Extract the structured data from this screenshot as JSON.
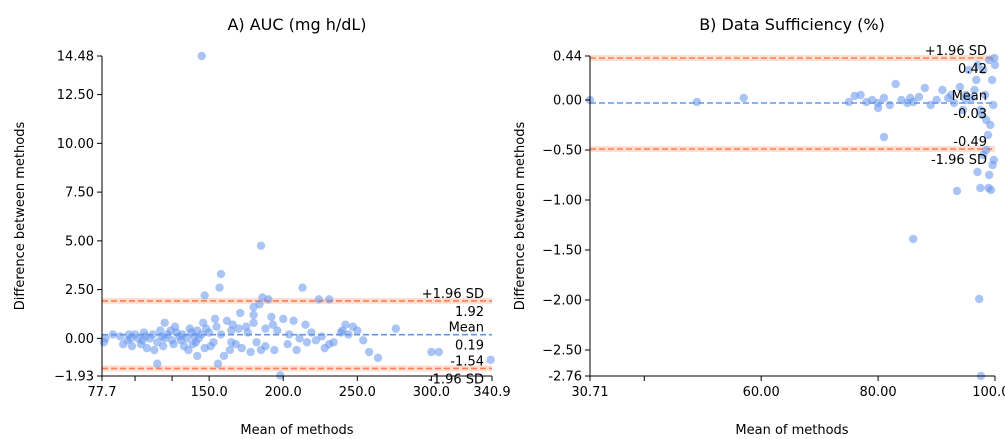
{
  "chart_data": [
    {
      "type": "scatter",
      "title": "A) AUC (mg h/dL)",
      "xlabel": "Mean of methods",
      "ylabel": "Difference between methods",
      "xlim": [
        77.7,
        340.9
      ],
      "ylim": [
        -1.93,
        14.48
      ],
      "xticks": [
        {
          "value": 77.7,
          "label": "77.7"
        },
        {
          "value": 150.0,
          "label": "150.0"
        },
        {
          "value": 200.0,
          "label": "200.0"
        },
        {
          "value": 250.0,
          "label": "250.0"
        },
        {
          "value": 300.0,
          "label": "300.0"
        },
        {
          "value": 340.9,
          "label": "340.9"
        }
      ],
      "xminor": [
        100,
        125
      ],
      "yticks": [
        {
          "value": 14.48,
          "label": "14.48"
        },
        {
          "value": 12.5,
          "label": "12.50"
        },
        {
          "value": 10.0,
          "label": "10.00"
        },
        {
          "value": 7.5,
          "label": "7.50"
        },
        {
          "value": 5.0,
          "label": "5.00"
        },
        {
          "value": 2.5,
          "label": "2.50"
        },
        {
          "value": 0.0,
          "label": "0.00"
        },
        {
          "value": -1.93,
          "label": "−1.93"
        }
      ],
      "lines": [
        {
          "name": "upper",
          "value": 1.92,
          "color": "#ff7f50",
          "value_label": "1.92",
          "tag": "+1.96 SD",
          "tag_pos": "above",
          "value_pos": "below"
        },
        {
          "name": "mean",
          "value": 0.19,
          "color": "#6495ed",
          "value_label": "0.19",
          "tag": "Mean",
          "tag_pos": "above",
          "value_pos": "below"
        },
        {
          "name": "lower",
          "value": -1.54,
          "color": "#ff7f50",
          "value_label": "-1.54",
          "tag": "-1.96 SD",
          "tag_pos": "below",
          "value_pos": "above"
        }
      ],
      "point_color": "#6495ed",
      "points": [
        [
          145,
          14.48
        ],
        [
          185,
          4.75
        ],
        [
          158,
          3.3
        ],
        [
          157,
          2.6
        ],
        [
          147,
          2.2
        ],
        [
          213,
          2.6
        ],
        [
          224,
          2.0
        ],
        [
          231,
          2.0
        ],
        [
          186,
          2.1
        ],
        [
          190,
          2.0
        ],
        [
          184,
          1.75
        ],
        [
          180,
          1.6
        ],
        [
          200,
          1.0
        ],
        [
          180,
          1.2
        ],
        [
          192,
          1.1
        ],
        [
          207,
          0.9
        ],
        [
          215,
          0.7
        ],
        [
          242,
          0.7
        ],
        [
          180,
          0.8
        ],
        [
          175,
          0.6
        ],
        [
          170,
          0.5
        ],
        [
          165,
          0.4
        ],
        [
          162,
          0.9
        ],
        [
          155,
          0.6
        ],
        [
          150,
          0.3
        ],
        [
          148,
          0.5
        ],
        [
          145,
          0.2
        ],
        [
          142,
          0.4
        ],
        [
          140,
          0.1
        ],
        [
          138,
          0.3
        ],
        [
          135,
          0.0
        ],
        [
          132,
          0.2
        ],
        [
          130,
          0.1
        ],
        [
          128,
          0.3
        ],
        [
          125,
          -0.1
        ],
        [
          122,
          0.2
        ],
        [
          120,
          0.0
        ],
        [
          118,
          0.1
        ],
        [
          115,
          -0.2
        ],
        [
          112,
          0.2
        ],
        [
          110,
          0.0
        ],
        [
          107,
          0.1
        ],
        [
          105,
          -0.1
        ],
        [
          102,
          0.0
        ],
        [
          100,
          0.2
        ],
        [
          97,
          0.0
        ],
        [
          95,
          -0.1
        ],
        [
          90,
          0.1
        ],
        [
          85,
          0.2
        ],
        [
          80,
          0.0
        ],
        [
          79,
          -0.2
        ],
        [
          92,
          -0.3
        ],
        [
          98,
          -0.4
        ],
        [
          108,
          -0.5
        ],
        [
          115,
          -1.3
        ],
        [
          120,
          0.8
        ],
        [
          136,
          -0.6
        ],
        [
          142,
          -0.9
        ],
        [
          151,
          -0.4
        ],
        [
          156,
          -1.3
        ],
        [
          160,
          -0.9
        ],
        [
          164,
          -0.6
        ],
        [
          168,
          -0.3
        ],
        [
          172,
          -0.5
        ],
        [
          178,
          -0.7
        ],
        [
          182,
          -0.2
        ],
        [
          188,
          -0.4
        ],
        [
          194,
          -0.6
        ],
        [
          198,
          -1.9
        ],
        [
          203,
          -0.3
        ],
        [
          209,
          -0.6
        ],
        [
          216,
          -0.2
        ],
        [
          222,
          -0.1
        ],
        [
          228,
          -0.5
        ],
        [
          234,
          -0.2
        ],
        [
          239,
          0.3
        ],
        [
          244,
          0.2
        ],
        [
          250,
          0.4
        ],
        [
          254,
          -0.1
        ],
        [
          258,
          -0.7
        ],
        [
          264,
          -1.0
        ],
        [
          276,
          0.5
        ],
        [
          305,
          -0.7
        ],
        [
          340,
          -1.1
        ],
        [
          300,
          -0.7
        ],
        [
          196,
          0.4
        ],
        [
          204,
          0.2
        ],
        [
          211,
          0.0
        ],
        [
          219,
          0.3
        ],
        [
          226,
          0.1
        ],
        [
          188,
          0.5
        ],
        [
          176,
          0.3
        ],
        [
          166,
          0.7
        ],
        [
          154,
          1.0
        ],
        [
          146,
          0.8
        ],
        [
          137,
          0.5
        ],
        [
          127,
          0.6
        ],
        [
          117,
          0.4
        ],
        [
          106,
          0.3
        ],
        [
          96,
          0.2
        ],
        [
          153,
          -0.2
        ],
        [
          147,
          -0.5
        ],
        [
          141,
          -0.2
        ],
        [
          133,
          -0.4
        ],
        [
          126,
          -0.3
        ],
        [
          119,
          -0.4
        ],
        [
          113,
          -0.6
        ],
        [
          104,
          -0.3
        ],
        [
          171,
          1.3
        ],
        [
          193,
          0.7
        ],
        [
          240,
          0.4
        ],
        [
          247,
          0.6
        ],
        [
          231,
          -0.3
        ],
        [
          185,
          -0.6
        ],
        [
          165,
          -0.2
        ],
        [
          158,
          0.2
        ],
        [
          143,
          0.0
        ],
        [
          139,
          -0.3
        ],
        [
          131,
          -0.1
        ],
        [
          124,
          0.4
        ]
      ]
    },
    {
      "type": "scatter",
      "title": "B) Data Sufficiency (%)",
      "xlabel": "Mean of methods",
      "ylabel": "Difference between methods",
      "xlim": [
        30.71,
        100.0
      ],
      "ylim": [
        -2.76,
        0.44
      ],
      "xticks": [
        {
          "value": 30.71,
          "label": "30.71"
        },
        {
          "value": 60.0,
          "label": "60.00"
        },
        {
          "value": 80.0,
          "label": "80.00"
        },
        {
          "value": 100.0,
          "label": "100.00"
        }
      ],
      "xminor": [
        40
      ],
      "yticks": [
        {
          "value": 0.44,
          "label": "0.44"
        },
        {
          "value": 0.0,
          "label": "0.00"
        },
        {
          "value": -0.5,
          "label": "−0.50"
        },
        {
          "value": -1.0,
          "label": "−1.00"
        },
        {
          "value": -1.5,
          "label": "−1.50"
        },
        {
          "value": -2.0,
          "label": "−2.00"
        },
        {
          "value": -2.5,
          "label": "−2.50"
        },
        {
          "value": -2.76,
          "label": "-2.76"
        }
      ],
      "lines": [
        {
          "name": "upper",
          "value": 0.42,
          "color": "#ff7f50",
          "value_label": "0.42",
          "tag": "+1.96 SD",
          "tag_pos": "above",
          "value_pos": "below"
        },
        {
          "name": "mean",
          "value": -0.03,
          "color": "#6495ed",
          "value_label": "-0.03",
          "tag": "Mean",
          "tag_pos": "above",
          "value_pos": "below"
        },
        {
          "name": "lower",
          "value": -0.49,
          "color": "#ff7f50",
          "value_label": "-0.49",
          "tag": "-1.96 SD",
          "tag_pos": "below",
          "value_pos": "above"
        }
      ],
      "point_color": "#6495ed",
      "points": [
        [
          30.71,
          0.0
        ],
        [
          49,
          -0.02
        ],
        [
          57,
          0.02
        ],
        [
          76,
          0.04
        ],
        [
          75,
          -0.02
        ],
        [
          77,
          0.05
        ],
        [
          78,
          -0.02
        ],
        [
          79,
          0.0
        ],
        [
          80,
          -0.03
        ],
        [
          81,
          0.02
        ],
        [
          82,
          -0.05
        ],
        [
          83,
          0.16
        ],
        [
          84,
          0.0
        ],
        [
          85,
          -0.03
        ],
        [
          85.5,
          0.02
        ],
        [
          86,
          -0.02
        ],
        [
          87,
          0.03
        ],
        [
          88,
          0.12
        ],
        [
          89,
          -0.05
        ],
        [
          90,
          0.0
        ],
        [
          91,
          0.1
        ],
        [
          92,
          0.02
        ],
        [
          93,
          -0.03
        ],
        [
          94,
          0.13
        ],
        [
          95,
          0.05
        ],
        [
          96,
          0.02
        ],
        [
          96.5,
          0.1
        ],
        [
          97,
          0.35
        ],
        [
          97.5,
          -0.1
        ],
        [
          98,
          0.3
        ],
        [
          98.5,
          -0.2
        ],
        [
          99,
          0.4
        ],
        [
          99.5,
          0.2
        ],
        [
          100,
          0.35
        ],
        [
          99.2,
          -0.25
        ],
        [
          98.8,
          -0.35
        ],
        [
          98.3,
          0.05
        ],
        [
          97.8,
          -0.15
        ],
        [
          99.7,
          -0.05
        ],
        [
          99.9,
          0.42
        ],
        [
          80,
          -0.08
        ],
        [
          81,
          -0.37
        ],
        [
          86,
          -1.39
        ],
        [
          93.5,
          -0.91
        ],
        [
          97,
          -0.72
        ],
        [
          97.5,
          -0.88
        ],
        [
          98,
          -0.55
        ],
        [
          98.5,
          -0.5
        ],
        [
          99,
          -0.75
        ],
        [
          99.3,
          -0.9
        ],
        [
          99.6,
          -0.65
        ],
        [
          99.8,
          -0.6
        ],
        [
          98.9,
          -0.88
        ],
        [
          97.3,
          -1.99
        ],
        [
          97.6,
          -2.76
        ],
        [
          96.8,
          0.2
        ],
        [
          95.5,
          0.3
        ],
        [
          94.5,
          -0.1
        ],
        [
          95,
          0.0
        ],
        [
          92.5,
          0.05
        ]
      ]
    }
  ]
}
